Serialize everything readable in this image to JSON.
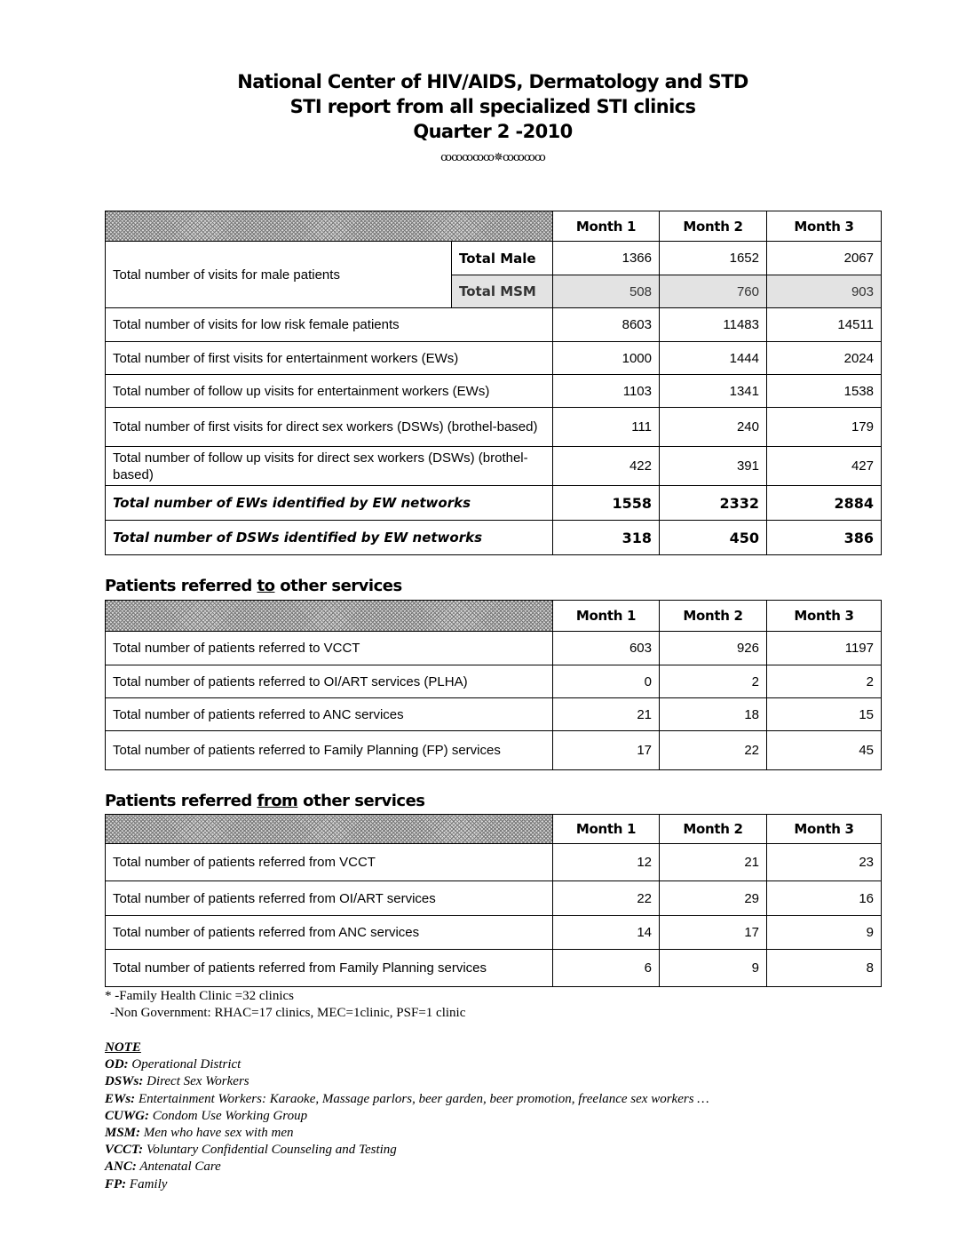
{
  "header": {
    "line1": "National Center of HIV/AIDS, Dermatology and STD",
    "line2": "STI report from all specialized STI clinics",
    "line3": "Quarter 2 -2010",
    "ornament": "ꝏꝏꝏꝏꝏ✵ꝏꝏꝏꝏ"
  },
  "months": [
    "Month 1",
    "Month 2",
    "Month 3"
  ],
  "table1": {
    "male": {
      "label": "Total number of visits for male patients",
      "total_male_label": "Total Male",
      "total_male": [
        "1366",
        "1652",
        "2067"
      ],
      "total_msm_label": "Total MSM",
      "total_msm": [
        "508",
        "760",
        "903"
      ]
    },
    "rows": [
      {
        "label": "Total number of visits for low risk female patients",
        "values": [
          "8603",
          "11483",
          "14511"
        ]
      },
      {
        "label": "Total number of first visits for entertainment workers (EWs)",
        "values": [
          "1000",
          "1444",
          "2024"
        ]
      },
      {
        "label": "Total number of follow up visits for entertainment workers (EWs)",
        "values": [
          "1103",
          "1341",
          "1538"
        ]
      },
      {
        "label": "Total number of first visits for direct sex workers (DSWs) (brothel-based)",
        "values": [
          "111",
          "240",
          "179"
        ]
      },
      {
        "label": "Total number of follow up visits for direct sex workers (DSWs) (brothel-based)",
        "values": [
          "422",
          "391",
          "427"
        ]
      }
    ],
    "bold_rows": [
      {
        "label": "Total number of EWs identified by EW networks",
        "values": [
          "1558",
          "2332",
          "2884"
        ]
      },
      {
        "label": "Total number of DSWs identified by EW networks",
        "values": [
          "318",
          "450",
          "386"
        ]
      }
    ]
  },
  "section_to": {
    "pre": "Patients referred ",
    "key": "to",
    "post": " other services"
  },
  "table2": [
    {
      "label": "Total number of patients referred to VCCT",
      "values": [
        "603",
        "926",
        "1197"
      ]
    },
    {
      "label": "Total number of patients referred to OI/ART services (PLHA)",
      "values": [
        "0",
        "2",
        "2"
      ]
    },
    {
      "label": "Total number of patients referred to ANC services",
      "values": [
        "21",
        "18",
        "15"
      ]
    },
    {
      "label": "Total number of patients referred to Family Planning (FP) services",
      "values": [
        "17",
        "22",
        "45"
      ]
    }
  ],
  "section_from": {
    "pre": "Patients referred ",
    "key": "from",
    "post": " other services"
  },
  "table3": [
    {
      "label": "Total number of patients referred from  VCCT",
      "values": [
        "12",
        "21",
        "23"
      ]
    },
    {
      "label": "Total number of patients referred from OI/ART services",
      "values": [
        "22",
        "29",
        "16"
      ]
    },
    {
      "label": "Total number of patients referred from  ANC services",
      "values": [
        "14",
        "17",
        "9"
      ]
    },
    {
      "label": "Total number of patients referred from Family Planning services",
      "values": [
        "6",
        "9",
        "8"
      ]
    }
  ],
  "footnote": {
    "line1": "* -Family Health Clinic =32 clinics",
    "line2": "-Non Government: RHAC=17 clinics, MEC=1clinic, PSF=1 clinic"
  },
  "notes": {
    "title": "NOTE",
    "items": [
      {
        "abbr": "OD:",
        "text": " Operational District"
      },
      {
        "abbr": "DSWs:",
        "text": " Direct Sex Workers"
      },
      {
        "abbr": "EWs:",
        "text": " Entertainment Workers: Karaoke, Massage parlors, beer garden, beer promotion, freelance sex workers …"
      },
      {
        "abbr": "CUWG:",
        "text": " Condom Use Working Group"
      },
      {
        "abbr": "MSM:",
        "text": " Men who have sex with men"
      },
      {
        "abbr": "VCCT:",
        "text": " Voluntary Confidential Counseling and Testing"
      },
      {
        "abbr": "ANC:",
        "text": " Antenatal Care"
      },
      {
        "abbr": "FP:",
        "text": " Family"
      }
    ]
  }
}
